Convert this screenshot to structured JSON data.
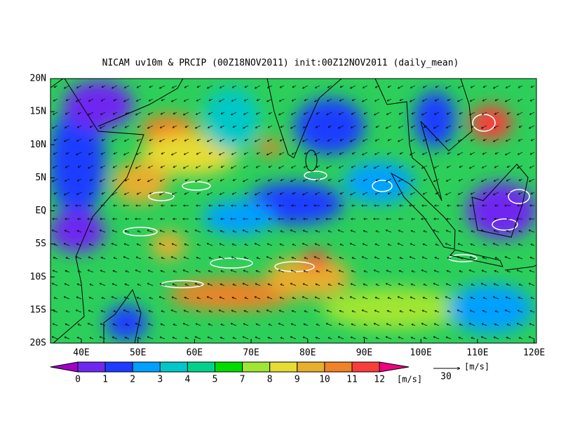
{
  "title": "NICAM uv10m & PRCIP (00Z18NOV2011) init:00Z12NOV2011 (daily_mean)",
  "lat_labels": [
    "20N",
    "15N",
    "10N",
    "5N",
    "EQ",
    "5S",
    "10S",
    "15S",
    "20S"
  ],
  "lon_labels": [
    "40E",
    "50E",
    "60E",
    "70E",
    "80E",
    "90E",
    "100E",
    "110E",
    "120E"
  ],
  "colorbar": {
    "labels": [
      "0",
      "1",
      "2",
      "3",
      "4",
      "5",
      "7",
      "8",
      "9",
      "10",
      "11",
      "12"
    ],
    "unit": "[m/s]",
    "colors": [
      "#a000c8",
      "#6e28f0",
      "#1e3cff",
      "#00a0ff",
      "#00c8c8",
      "#00d28c",
      "#00dc00",
      "#a0e632",
      "#e6dc32",
      "#e6af2d",
      "#f08228",
      "#fa3c3c",
      "#f00082"
    ]
  },
  "reference_vector": {
    "value": "30",
    "unit": "[m/s]"
  }
}
